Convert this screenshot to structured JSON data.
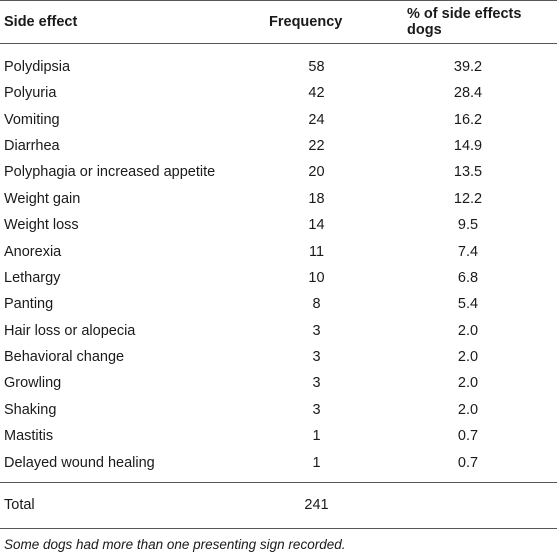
{
  "table": {
    "headers": [
      "Side effect",
      "Frequency",
      "% of side effects dogs"
    ],
    "rows": [
      [
        "Polydipsia",
        "58",
        "39.2"
      ],
      [
        "Polyuria",
        "42",
        "28.4"
      ],
      [
        "Vomiting",
        "24",
        "16.2"
      ],
      [
        "Diarrhea",
        "22",
        "14.9"
      ],
      [
        "Polyphagia or increased appetite",
        "20",
        "13.5"
      ],
      [
        "Weight gain",
        "18",
        "12.2"
      ],
      [
        "Weight loss",
        "14",
        "9.5"
      ],
      [
        "Anorexia",
        "11",
        "7.4"
      ],
      [
        "Lethargy",
        "10",
        "6.8"
      ],
      [
        "Panting",
        "8",
        "5.4"
      ],
      [
        "Hair loss or alopecia",
        "3",
        "2.0"
      ],
      [
        "Behavioral change",
        "3",
        "2.0"
      ],
      [
        "Growling",
        "3",
        "2.0"
      ],
      [
        "Shaking",
        "3",
        "2.0"
      ],
      [
        "Mastitis",
        "1",
        "0.7"
      ],
      [
        "Delayed wound healing",
        "1",
        "0.7"
      ]
    ],
    "total": {
      "label": "Total",
      "frequency": "241",
      "percent": ""
    },
    "footnote": "Some dogs had more than one presenting sign recorded."
  }
}
